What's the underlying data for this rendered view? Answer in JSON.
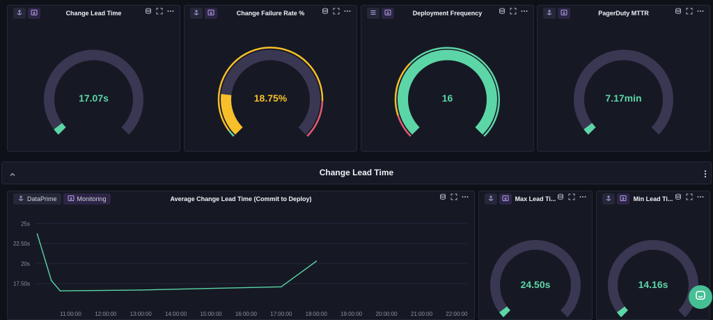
{
  "colors": {
    "accent_green": "#5cd6a6",
    "accent_yellow": "#f7bf2a",
    "accent_red": "#e85a72",
    "track": "#3a3752"
  },
  "top_panels": [
    {
      "title": "Change Lead Time",
      "value": "17.07s",
      "fraction": 0.03,
      "value_color": "#5cd6a6",
      "left_icon": "anchor-icon"
    },
    {
      "title": "Change Failure Rate %",
      "value": "18.75%",
      "fraction": 0.19,
      "value_color": "#f7bf2a",
      "left_icon": "anchor-icon"
    },
    {
      "title": "Deployment Frequency",
      "value": "16",
      "fraction": 1.0,
      "value_color": "#5cd6a6",
      "left_icon": "list-icon"
    },
    {
      "title": "PagerDuty MTTR",
      "value": "7.17min",
      "fraction": 0.03,
      "value_color": "#5cd6a6",
      "left_icon": "anchor-icon"
    }
  ],
  "section": {
    "title": "Change Lead Time"
  },
  "line_panel": {
    "tag1": "DataPrime",
    "tag2": "Monitoring",
    "title": "Average Change Lead Time (Commit to Deploy)"
  },
  "small_panels": [
    {
      "title": "Max Lead Ti...",
      "value": "24.50s",
      "fraction": 0.03
    },
    {
      "title": "Min Lead Ti...",
      "value": "14.16s",
      "fraction": 0.03
    }
  ],
  "chart_data": {
    "type": "line",
    "y_ticks": [
      "25s",
      "22.50s",
      "20s",
      "17.50s"
    ],
    "x_ticks": [
      "11:00:00",
      "12:00:00",
      "13:00:00",
      "14:00:00",
      "15:00:00",
      "16:00:00",
      "17:00:00",
      "18:00:00",
      "19:00:00",
      "20:00:00",
      "21:00:00",
      "22:00:00"
    ],
    "ylim": [
      14.7,
      26.5
    ],
    "xlim": [
      10.0,
      22.3
    ],
    "series": [
      {
        "color": "#5cd6a6",
        "x": [
          10.05,
          10.45,
          10.7,
          13.0,
          17.0,
          18.0
        ],
        "y": [
          23.7,
          17.9,
          16.6,
          16.7,
          17.1,
          20.3
        ]
      }
    ],
    "grid": true
  }
}
